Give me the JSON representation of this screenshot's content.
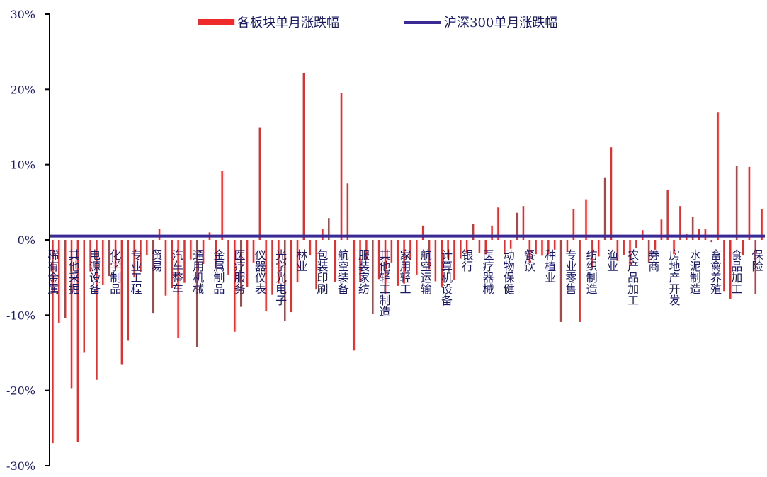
{
  "chart_data": {
    "type": "bar",
    "ylim": [
      -30,
      30
    ],
    "yticks": [
      -30,
      -20,
      -10,
      0,
      10,
      20,
      30
    ],
    "ytick_labels": [
      "-30%",
      "-20%",
      "-10%",
      "0%",
      "10%",
      "20%",
      "30%"
    ],
    "legend_position": "top-center",
    "colors": {
      "bar": "#EE2A2A",
      "line": "#3A2A96",
      "axis": "#000000",
      "label": "#1a1a66"
    },
    "labeled_categories": [
      "稀有金属",
      "其他采掘",
      "电源设备",
      "化学制品",
      "专业工程",
      "贸易",
      "汽车整车",
      "通用机械",
      "金属制品",
      "医疗服务",
      "仪器仪表",
      "光学光电子",
      "林业",
      "包装印刷",
      "航空装备",
      "服装家纺",
      "其他轻工制造",
      "家用轻工",
      "航空运输",
      "计算机设备",
      "银行",
      "医疗器械",
      "动物保健",
      "餐饮",
      "种植业",
      "专业零售",
      "纺织制造",
      "渔业",
      "农产品加工",
      "券商",
      "房地产开发",
      "水泥制造",
      "畜禽养殖",
      "食品加工",
      "保险"
    ],
    "series": [
      {
        "name": "各板块单月涨跌幅",
        "type": "bar",
        "values": [
          -27.0,
          -11.0,
          -10.4,
          -19.7,
          -26.9,
          -15.0,
          -4.2,
          -18.6,
          -6.0,
          -4.8,
          -3.8,
          -16.6,
          -13.4,
          -5.0,
          -4.3,
          -2.0,
          -9.7,
          1.5,
          -7.4,
          -6.4,
          -13.0,
          -5.7,
          -2.6,
          -14.2,
          -3.2,
          1.0,
          -3.8,
          9.2,
          -4.6,
          -12.2,
          -8.9,
          -6.3,
          -3.0,
          14.9,
          -9.5,
          -7.3,
          -5.8,
          -10.8,
          -9.6,
          -5.6,
          22.2,
          -2.0,
          -6.6,
          1.5,
          2.9,
          -5.6,
          19.5,
          7.5,
          -14.7,
          -5.5,
          -2.7,
          -9.8,
          -5.2,
          -7.2,
          -3.0,
          -6.1,
          -5.8,
          -2.7,
          -4.6,
          1.9,
          -3.9,
          -5.5,
          -6.2,
          -2.5,
          -5.3,
          -2.5,
          -1.8,
          2.1,
          -1.7,
          -1.9,
          1.9,
          4.3,
          -1.9,
          -1.2,
          3.6,
          4.5,
          -3.1,
          -1.9,
          -2.1,
          -1.9,
          -1.3,
          -10.9,
          -1.6,
          4.1,
          -10.9,
          5.4,
          -3.7,
          -2.2,
          8.3,
          12.3,
          -2.8,
          -2.0,
          -3.4,
          -1.1,
          1.3,
          -3.1,
          -1.3,
          2.7,
          6.6,
          -1.9,
          4.5,
          0.8,
          3.1,
          1.5,
          1.4,
          -0.3,
          17.0,
          -6.8,
          -7.8,
          9.8,
          -2.0,
          9.7,
          -7.2,
          4.1
        ]
      },
      {
        "name": "沪深300单月涨跌幅",
        "type": "line",
        "value": 0.5
      }
    ]
  }
}
